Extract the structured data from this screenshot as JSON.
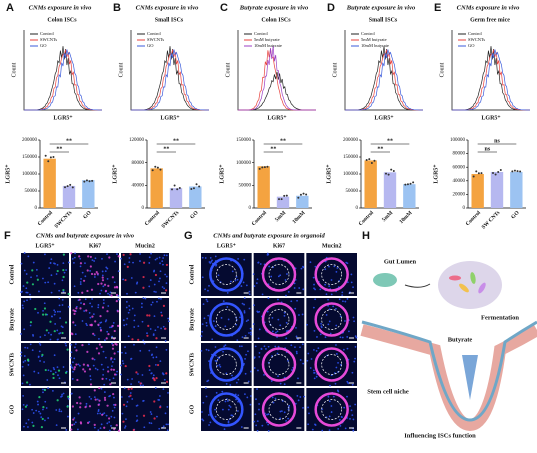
{
  "panels": [
    {
      "letter": "A",
      "title": "CNMs exposure in vivo",
      "subtitle": "Colon ISCs",
      "legend": [
        "Control",
        "SWCNTs",
        "GO"
      ],
      "colors": [
        "#222222",
        "#e8413c",
        "#3b5bdb"
      ],
      "x_label": "LGR5⁺",
      "y_label": "Count"
    },
    {
      "letter": "B",
      "title": "CNMs exposure in vivo",
      "subtitle": "Small ISCs",
      "legend": [
        "Control",
        "SWCNTs",
        "GO"
      ],
      "colors": [
        "#222222",
        "#e8413c",
        "#3b5bdb"
      ],
      "x_label": "LGR5⁺",
      "y_label": "Count"
    },
    {
      "letter": "C",
      "title": "Butyrate exposure in vivo",
      "subtitle": "Colon ISCs",
      "legend": [
        "Control",
        "5mM butyrate",
        "10mM butyrate"
      ],
      "colors": [
        "#222222",
        "#e8413c",
        "#9b3fc4"
      ],
      "x_label": "LGR5⁺",
      "y_label": "Count"
    },
    {
      "letter": "D",
      "title": "Butyrate exposure in vivo",
      "subtitle": "Small ISCs",
      "legend": [
        "Control",
        "5mM butyrate",
        "10mM butyrate"
      ],
      "colors": [
        "#222222",
        "#e8413c",
        "#3b5bdb"
      ],
      "x_label": "LGR5⁺",
      "y_label": "Count"
    },
    {
      "letter": "E",
      "title": "CNMs exposure in vivo",
      "subtitle": "Germ free mice",
      "legend": [
        "Control",
        "SWCNTs",
        "GO"
      ],
      "colors": [
        "#222222",
        "#e8413c",
        "#3b5bdb"
      ],
      "x_label": "LGR5⁺",
      "y_label": "Count"
    }
  ],
  "chart_data": [
    {
      "type": "bar",
      "categories": [
        "Control",
        "SWCNTs",
        "GO"
      ],
      "values": [
        145000,
        65000,
        82000
      ],
      "colors": [
        "#f4a340",
        "#b6b8f0",
        "#9cc3f2"
      ],
      "ylim": [
        0,
        200000
      ],
      "yticks": [
        0,
        50000,
        100000,
        150000,
        200000
      ],
      "y_label": "LGR5⁺",
      "annotations": [
        "**",
        "**"
      ]
    },
    {
      "type": "bar",
      "categories": [
        "Control",
        "SWCNTs",
        "GO"
      ],
      "values": [
        70000,
        35000,
        38000
      ],
      "colors": [
        "#f4a340",
        "#b6b8f0",
        "#9cc3f2"
      ],
      "ylim": [
        0,
        120000
      ],
      "yticks": [
        0,
        40000,
        80000,
        120000
      ],
      "y_label": "LGR5⁺",
      "annotations": [
        "**",
        "**"
      ]
    },
    {
      "type": "bar",
      "categories": [
        "Control",
        "5mM",
        "10mM"
      ],
      "values": [
        92000,
        25000,
        27000
      ],
      "colors": [
        "#f4a340",
        "#b6b8f0",
        "#9cc3f2"
      ],
      "ylim": [
        0,
        150000
      ],
      "yticks": [
        0,
        50000,
        100000,
        150000
      ],
      "y_label": "LGR5⁺",
      "annotations": [
        "**",
        "**"
      ]
    },
    {
      "type": "bar",
      "categories": [
        "Control",
        "5mM",
        "10mM"
      ],
      "values": [
        140000,
        105000,
        70000
      ],
      "colors": [
        "#f4a340",
        "#b6b8f0",
        "#9cc3f2"
      ],
      "ylim": [
        0,
        200000
      ],
      "yticks": [
        0,
        50000,
        100000,
        150000,
        200000
      ],
      "y_label": "LGR5⁺",
      "annotations": [
        "**",
        "**"
      ]
    },
    {
      "type": "bar",
      "categories": [
        "Control",
        "SW CNTs",
        "GO"
      ],
      "values": [
        50000,
        53000,
        53000
      ],
      "colors": [
        "#f4a340",
        "#b6b8f0",
        "#9cc3f2"
      ],
      "ylim": [
        0,
        100000
      ],
      "yticks": [
        0,
        20000,
        40000,
        60000,
        80000,
        100000
      ],
      "y_label": "LGR5⁺",
      "annotations": [
        "ns",
        "ns"
      ]
    }
  ],
  "panel_f": {
    "letter": "F",
    "title": "CNMs and butyrate exposure in vivo",
    "columns": [
      "LGR5⁺",
      "Ki67",
      "Mucin2"
    ],
    "rows": [
      "Control",
      "Butyrate",
      "SWCNTs",
      "GO"
    ]
  },
  "panel_g": {
    "letter": "G",
    "title": "CNMs and butyrate exposure in organoid",
    "columns": [
      "LGR5⁺",
      "Ki67",
      "Mucin2"
    ],
    "rows": [
      "Control",
      "Butyrate",
      "SWCNTs",
      "GO"
    ]
  },
  "panel_h": {
    "letter": "H",
    "labels": [
      "Gut Lumen",
      "Fermentation",
      "Butyrate",
      "Stem cell niche",
      "Influencing ISCs function"
    ]
  }
}
